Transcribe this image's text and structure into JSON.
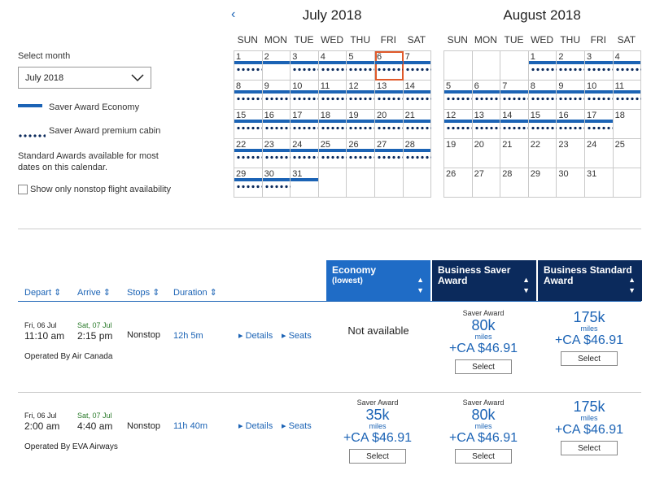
{
  "filters": {
    "select_month_label": "Select month",
    "month_value": "July 2018",
    "legend_economy": "Saver Award Economy",
    "legend_premium": "Saver Award premium cabin",
    "standard_note": "Standard Awards available for most dates on this calendar.",
    "nonstop_label": "Show only nonstop flight availability"
  },
  "colors": {
    "accent": "#1b63b5",
    "dark": "#0b2a5c",
    "economy_header": "#1f6cc6",
    "business_header": "#0b2a5c",
    "selected_day": "#e05a2b"
  },
  "calendar": {
    "weekdays": [
      "SUN",
      "MON",
      "TUE",
      "WED",
      "THU",
      "FRI",
      "SAT"
    ],
    "months": [
      {
        "title": "July 2018",
        "start_offset": 0,
        "days": 31,
        "economy": [
          1,
          2,
          3,
          4,
          5,
          6,
          7,
          8,
          9,
          10,
          11,
          12,
          13,
          14,
          15,
          16,
          17,
          18,
          19,
          20,
          21,
          22,
          23,
          24,
          25,
          26,
          27,
          28,
          29,
          30,
          31
        ],
        "premium": [
          1,
          3,
          4,
          5,
          6,
          7,
          8,
          9,
          10,
          11,
          12,
          13,
          14,
          15,
          16,
          17,
          18,
          19,
          20,
          21,
          22,
          23,
          24,
          25,
          26,
          27,
          28,
          29,
          30
        ],
        "selected": 6
      },
      {
        "title": "August 2018",
        "start_offset": 3,
        "days": 31,
        "economy": [
          1,
          2,
          3,
          4,
          5,
          6,
          7,
          8,
          9,
          10,
          11,
          12,
          13,
          14,
          15,
          16,
          17
        ],
        "premium": [
          1,
          2,
          3,
          4,
          5,
          6,
          7,
          8,
          9,
          10,
          11,
          12,
          13,
          14,
          15,
          16,
          17
        ],
        "selected": null
      }
    ]
  },
  "results": {
    "columns": {
      "depart": "Depart",
      "arrive": "Arrive",
      "stops": "Stops",
      "duration": "Duration"
    },
    "fare_headers": [
      {
        "title": "Economy",
        "sub": "(lowest)"
      },
      {
        "title": "Business Saver Award",
        "sub": ""
      },
      {
        "title": "Business Standard Award",
        "sub": ""
      }
    ],
    "flights": [
      {
        "depart_date": "Fri, 06 Jul",
        "depart_time": "11:10 am",
        "arrive_date": "Sat, 07 Jul",
        "arrive_time": "2:15 pm",
        "stops": "Nonstop",
        "duration": "12h 5m",
        "operator": "Operated By Air Canada",
        "details": "Details",
        "seats": "Seats",
        "fares": [
          {
            "available": false,
            "text": "Not available"
          },
          {
            "available": true,
            "label": "Saver Award",
            "miles": "80k",
            "miles_unit": "miles",
            "price": "+CA $46.91",
            "button": "Select"
          },
          {
            "available": true,
            "label": "",
            "miles": "175k",
            "miles_unit": "miles",
            "price": "+CA $46.91",
            "button": "Select"
          }
        ]
      },
      {
        "depart_date": "Fri, 06 Jul",
        "depart_time": "2:00 am",
        "arrive_date": "Sat, 07 Jul",
        "arrive_time": "4:40 am",
        "stops": "Nonstop",
        "duration": "11h 40m",
        "operator": "Operated By EVA Airways",
        "details": "Details",
        "seats": "Seats",
        "fares": [
          {
            "available": true,
            "label": "Saver Award",
            "miles": "35k",
            "miles_unit": "miles",
            "price": "+CA $46.91",
            "button": "Select"
          },
          {
            "available": true,
            "label": "Saver Award",
            "miles": "80k",
            "miles_unit": "miles",
            "price": "+CA $46.91",
            "button": "Select"
          },
          {
            "available": true,
            "label": "",
            "miles": "175k",
            "miles_unit": "miles",
            "price": "+CA $46.91",
            "button": "Select"
          }
        ]
      }
    ]
  }
}
